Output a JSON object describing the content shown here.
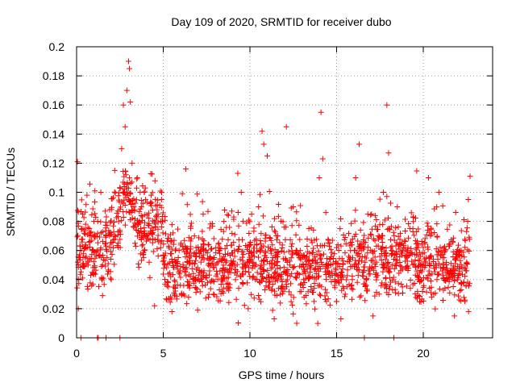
{
  "chart_data": {
    "type": "scatter",
    "title": "Day 109 of 2020, SRMTID for receiver dubo",
    "xlabel": "GPS time / hours",
    "ylabel": "SRMTID / TECUs",
    "xlim": [
      0,
      24
    ],
    "ylim": [
      0,
      0.2
    ],
    "grid": true,
    "marker": "+",
    "color": "#ff0000",
    "x_ticks": [
      0,
      5,
      10,
      15,
      20
    ],
    "x_tick_labels": [
      "0",
      "5",
      "10",
      "15",
      "20"
    ],
    "y_ticks": [
      0,
      0.02,
      0.04,
      0.06,
      0.08,
      0.1,
      0.12,
      0.14,
      0.16,
      0.18,
      0.2
    ],
    "y_tick_labels": [
      "0",
      "0.02",
      "0.04",
      "0.06",
      "0.08",
      "0.1",
      "0.12",
      "0.14",
      "0.16",
      "0.18",
      "0.2"
    ],
    "series": [
      {
        "name": "SRMTID",
        "points": [
          [
            0.05,
            0.121
          ],
          [
            0.1,
            0.02
          ],
          [
            0.2,
            0.063
          ],
          [
            0.35,
            0.085
          ],
          [
            0.5,
            0.055
          ],
          [
            0.6,
            0.098
          ],
          [
            0.75,
            0.07
          ],
          [
            0.9,
            0.045
          ],
          [
            1.0,
            0.08
          ],
          [
            1.2,
            0.06
          ],
          [
            1.4,
            0.1
          ],
          [
            1.5,
            0.05
          ],
          [
            1.7,
            0.07
          ],
          [
            1.9,
            0.088
          ],
          [
            2.0,
            0.04
          ],
          [
            2.2,
            0.115
          ],
          [
            2.4,
            0.065
          ],
          [
            2.6,
            0.13
          ],
          [
            2.7,
            0.16
          ],
          [
            2.8,
            0.145
          ],
          [
            2.9,
            0.17
          ],
          [
            3.0,
            0.19
          ],
          [
            3.05,
            0.185
          ],
          [
            3.1,
            0.162
          ],
          [
            3.2,
            0.12
          ],
          [
            3.3,
            0.09
          ],
          [
            3.5,
            0.11
          ],
          [
            3.7,
            0.075
          ],
          [
            3.9,
            0.1
          ],
          [
            4.1,
            0.068
          ],
          [
            4.3,
            0.098
          ],
          [
            4.5,
            0.022
          ],
          [
            4.7,
            0.085
          ],
          [
            4.9,
            0.095
          ],
          [
            5.1,
            0.05
          ],
          [
            5.3,
            0.035
          ],
          [
            5.5,
            0.018
          ],
          [
            5.7,
            0.06
          ],
          [
            5.9,
            0.045
          ],
          [
            6.1,
            0.099
          ],
          [
            6.3,
            0.116
          ],
          [
            6.5,
            0.055
          ],
          [
            6.8,
            0.07
          ],
          [
            7.0,
            0.04
          ],
          [
            7.3,
            0.085
          ],
          [
            7.6,
            0.05
          ],
          [
            7.9,
            0.03
          ],
          [
            8.2,
            0.065
          ],
          [
            8.5,
            0.08
          ],
          [
            8.8,
            0.045
          ],
          [
            9.1,
            0.06
          ],
          [
            9.3,
            0.113
          ],
          [
            9.5,
            0.1
          ],
          [
            9.7,
            0.05
          ],
          [
            9.9,
            0.02
          ],
          [
            10.1,
            0.085
          ],
          [
            10.3,
            0.04
          ],
          [
            10.5,
            0.09
          ],
          [
            10.7,
            0.142
          ],
          [
            10.8,
            0.133
          ],
          [
            11.0,
            0.125
          ],
          [
            11.2,
            0.06
          ],
          [
            11.4,
            0.013
          ],
          [
            11.6,
            0.07
          ],
          [
            11.9,
            0.035
          ],
          [
            12.1,
            0.145
          ],
          [
            12.3,
            0.05
          ],
          [
            12.5,
            0.09
          ],
          [
            12.7,
            0.01
          ],
          [
            12.9,
            0.06
          ],
          [
            13.1,
            0.04
          ],
          [
            13.4,
            0.075
          ],
          [
            13.7,
            0.025
          ],
          [
            14.0,
            0.11
          ],
          [
            14.1,
            0.155
          ],
          [
            14.2,
            0.123
          ],
          [
            14.4,
            0.05
          ],
          [
            14.6,
            0.065
          ],
          [
            14.9,
            0.04
          ],
          [
            15.2,
            0.075
          ],
          [
            15.5,
            0.03
          ],
          [
            15.8,
            0.06
          ],
          [
            16.1,
            0.11
          ],
          [
            16.3,
            0.133
          ],
          [
            16.5,
            0.045
          ],
          [
            16.8,
            0.085
          ],
          [
            17.1,
            0.015
          ],
          [
            17.4,
            0.07
          ],
          [
            17.7,
            0.1
          ],
          [
            17.9,
            0.16
          ],
          [
            18.0,
            0.127
          ],
          [
            18.2,
            0.05
          ],
          [
            18.5,
            0.09
          ],
          [
            18.8,
            0.035
          ],
          [
            19.1,
            0.06
          ],
          [
            19.4,
            0.075
          ],
          [
            19.7,
            0.04
          ],
          [
            20.0,
            0.05
          ],
          [
            20.3,
            0.11
          ],
          [
            20.6,
            0.03
          ],
          [
            20.9,
            0.1
          ],
          [
            21.2,
            0.055
          ],
          [
            21.5,
            0.04
          ],
          [
            21.8,
            0.015
          ],
          [
            22.1,
            0.06
          ],
          [
            22.4,
            0.025
          ],
          [
            22.6,
            0.095
          ],
          [
            22.7,
            0.111
          ]
        ]
      }
    ],
    "zero_points_x": [
      0.25,
      1.2,
      1.25,
      1.7,
      2.5,
      16.6,
      18.3
    ]
  }
}
